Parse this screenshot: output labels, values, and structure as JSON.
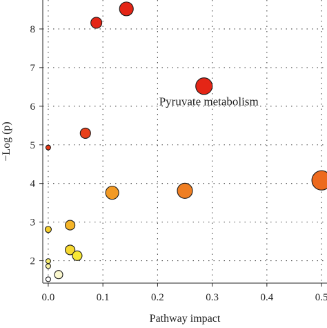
{
  "chart_data": {
    "type": "scatter",
    "title": "",
    "xlabel": "Pathway impact",
    "ylabel": "−Log (p)",
    "xlim": [
      -0.01,
      0.51
    ],
    "ylim": [
      1.42,
      8.75
    ],
    "xticks": [
      0.0,
      0.1,
      0.2,
      0.3,
      0.4,
      0.5
    ],
    "xtick_labels": [
      "0.0",
      "0.1",
      "0.2",
      "0.3",
      "0.4",
      "0.5"
    ],
    "yticks": [
      2,
      3,
      4,
      5,
      6,
      7,
      8
    ],
    "ytick_labels": [
      "2",
      "3",
      "4",
      "5",
      "6",
      "7",
      "8"
    ],
    "grid": "dotted",
    "legend": "none",
    "color_scale": "white (low) to yellow to orange to red (high −log p)",
    "points": [
      {
        "x": 0.143,
        "y": 8.52,
        "size_r": 10,
        "color": "#e42516"
      },
      {
        "x": 0.088,
        "y": 8.16,
        "size_r": 8,
        "color": "#e42516"
      },
      {
        "x": 0.285,
        "y": 6.52,
        "size_r": 12,
        "color": "#e42516"
      },
      {
        "x": 0.068,
        "y": 5.3,
        "size_r": 7.5,
        "color": "#e8411b"
      },
      {
        "x": 0.0,
        "y": 4.93,
        "size_r": 3.5,
        "color": "#ea3a18"
      },
      {
        "x": 0.5,
        "y": 4.08,
        "size_r": 14,
        "color": "#ed6a1e"
      },
      {
        "x": 0.25,
        "y": 3.81,
        "size_r": 11,
        "color": "#ef7e22"
      },
      {
        "x": 0.117,
        "y": 3.76,
        "size_r": 9.5,
        "color": "#f29a25"
      },
      {
        "x": 0.04,
        "y": 2.92,
        "size_r": 7,
        "color": "#f4b428"
      },
      {
        "x": 0.0,
        "y": 2.81,
        "size_r": 4.5,
        "color": "#f4cd2c"
      },
      {
        "x": 0.04,
        "y": 2.28,
        "size_r": 7,
        "color": "#f6d830"
      },
      {
        "x": 0.053,
        "y": 2.13,
        "size_r": 7,
        "color": "#f8e834"
      },
      {
        "x": 0.0,
        "y": 1.99,
        "size_r": 3.5,
        "color": "#f6ec6a"
      },
      {
        "x": 0.0,
        "y": 1.86,
        "size_r": 3.5,
        "color": "#f8f2a6"
      },
      {
        "x": 0.019,
        "y": 1.64,
        "size_r": 6,
        "color": "#fbf8cf"
      },
      {
        "x": 0.0,
        "y": 1.52,
        "size_r": 3.5,
        "color": "#ffffff"
      }
    ],
    "annotations": [
      {
        "text": "Pyruvate metabolism",
        "x": 0.285,
        "y": 6.52
      }
    ]
  }
}
